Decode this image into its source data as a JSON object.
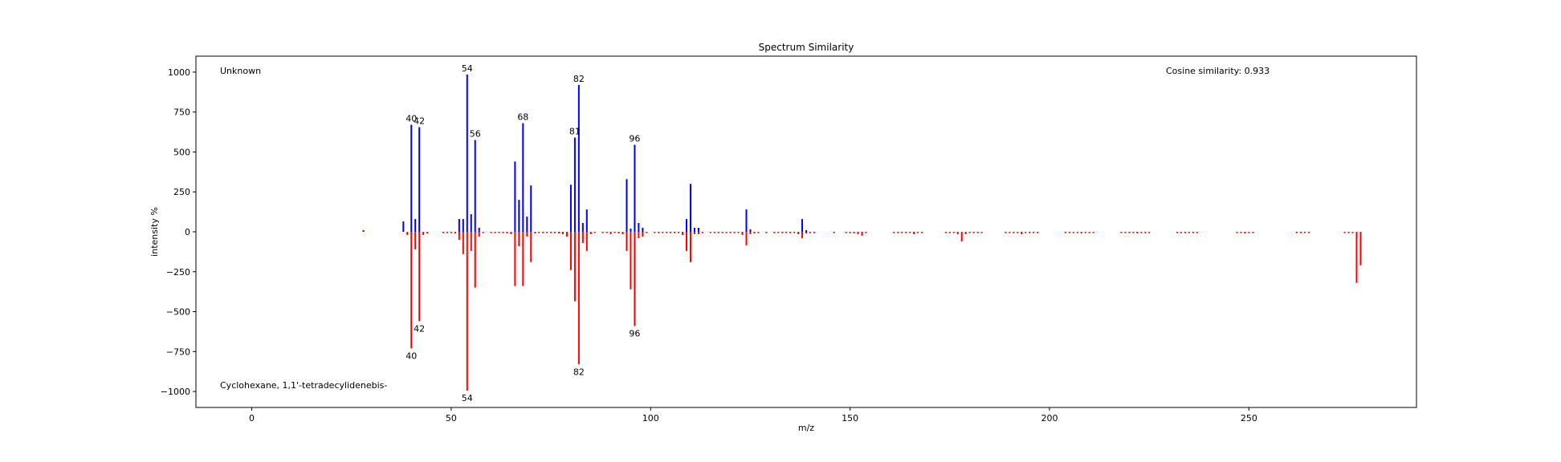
{
  "chart_data": {
    "type": "bar",
    "title": "Spectrum Similarity",
    "xlabel": "m/z",
    "ylabel": "intensity %",
    "xlim": [
      -14,
      292
    ],
    "ylim": [
      -1100,
      1100
    ],
    "x_ticks": [
      0,
      50,
      100,
      150,
      200,
      250
    ],
    "y_ticks": [
      -1000,
      -750,
      -500,
      -250,
      0,
      250,
      500,
      750,
      1000
    ],
    "grid": false,
    "annotations": {
      "top_left": "Unknown",
      "bottom_left": "Cyclohexane, 1,1'-tetradecylidenebis-",
      "top_right": "Cosine similarity: 0.933"
    },
    "series": [
      {
        "name": "Unknown",
        "color": "#0000ff",
        "x": [
          28,
          38,
          40,
          41,
          42,
          52,
          53,
          54,
          55,
          56,
          57,
          66,
          67,
          68,
          69,
          70,
          80,
          81,
          82,
          83,
          84,
          94,
          95,
          96,
          97,
          98,
          109,
          110,
          111,
          112,
          124,
          125,
          138,
          139
        ],
        "values": [
          10,
          65,
          670,
          80,
          655,
          80,
          80,
          985,
          110,
          575,
          25,
          440,
          200,
          680,
          95,
          290,
          295,
          590,
          920,
          55,
          140,
          330,
          20,
          545,
          55,
          25,
          80,
          300,
          25,
          25,
          140,
          15,
          80,
          10
        ]
      },
      {
        "name": "Cyclohexane, 1,1'-tetradecylidenebis-",
        "color": "#ff0000",
        "x": [
          39,
          40,
          41,
          42,
          43,
          44,
          48,
          49,
          50,
          51,
          52,
          53,
          54,
          55,
          56,
          57,
          58,
          60,
          61,
          62,
          63,
          64,
          65,
          66,
          67,
          68,
          69,
          70,
          71,
          72,
          73,
          74,
          75,
          76,
          77,
          78,
          79,
          80,
          81,
          82,
          83,
          84,
          85,
          86,
          88,
          89,
          90,
          91,
          92,
          93,
          94,
          95,
          96,
          97,
          98,
          99,
          101,
          102,
          103,
          104,
          105,
          106,
          107,
          108,
          109,
          110,
          111,
          112,
          113,
          115,
          116,
          117,
          118,
          119,
          120,
          121,
          122,
          123,
          124,
          125,
          126,
          127,
          129,
          131,
          132,
          133,
          134,
          135,
          136,
          137,
          138,
          139,
          140,
          141,
          146,
          149,
          150,
          151,
          152,
          153,
          154,
          161,
          162,
          163,
          164,
          165,
          166,
          167,
          168,
          174,
          175,
          176,
          177,
          178,
          179,
          180,
          181,
          182,
          183,
          189,
          190,
          191,
          192,
          193,
          194,
          195,
          196,
          197,
          204,
          205,
          206,
          207,
          208,
          209,
          210,
          211,
          218,
          219,
          220,
          221,
          222,
          223,
          224,
          225,
          232,
          233,
          234,
          235,
          236,
          237,
          247,
          248,
          249,
          250,
          251,
          262,
          263,
          264,
          265,
          274,
          275,
          276,
          277,
          278
        ],
        "values": [
          -20,
          -730,
          -110,
          -560,
          -20,
          -10,
          -8,
          -8,
          -8,
          -10,
          -50,
          -140,
          -995,
          -120,
          -350,
          -30,
          -8,
          -8,
          -8,
          -8,
          -8,
          -10,
          -15,
          -340,
          -90,
          -340,
          -30,
          -190,
          -10,
          -8,
          -8,
          -8,
          -8,
          -8,
          -10,
          -15,
          -30,
          -240,
          -435,
          -830,
          -70,
          -120,
          -15,
          -8,
          -8,
          -8,
          -15,
          -8,
          -10,
          -15,
          -120,
          -360,
          -590,
          -40,
          -30,
          -8,
          -8,
          -8,
          -8,
          -8,
          -8,
          -8,
          -8,
          -20,
          -120,
          -190,
          -15,
          -15,
          -8,
          -8,
          -8,
          -8,
          -8,
          -8,
          -8,
          -8,
          -8,
          -20,
          -85,
          -15,
          -10,
          -8,
          -8,
          -8,
          -8,
          -8,
          -8,
          -8,
          -8,
          -15,
          -40,
          -10,
          -8,
          -8,
          -8,
          -8,
          -8,
          -10,
          -15,
          -25,
          -8,
          -8,
          -8,
          -8,
          -8,
          -8,
          -15,
          -8,
          -8,
          -8,
          -8,
          -8,
          -15,
          -60,
          -15,
          -8,
          -8,
          -8,
          -8,
          -8,
          -8,
          -8,
          -8,
          -15,
          -8,
          -8,
          -8,
          -8,
          -8,
          -8,
          -8,
          -8,
          -10,
          -8,
          -8,
          -8,
          -8,
          -8,
          -8,
          -8,
          -10,
          -8,
          -8,
          -8,
          -8,
          -8,
          -8,
          -8,
          -8,
          -8,
          -8,
          -8,
          -10,
          -8,
          -8,
          -8,
          -8,
          -8,
          -8,
          -8,
          -8,
          -8,
          -320,
          -210
        ]
      }
    ],
    "peak_labels": [
      {
        "x": 40,
        "y": 670,
        "text": "40"
      },
      {
        "x": 42,
        "y": 655,
        "text": "42"
      },
      {
        "x": 54,
        "y": 985,
        "text": "54"
      },
      {
        "x": 56,
        "y": 575,
        "text": "56"
      },
      {
        "x": 68,
        "y": 680,
        "text": "68"
      },
      {
        "x": 81,
        "y": 590,
        "text": "81"
      },
      {
        "x": 82,
        "y": 920,
        "text": "82"
      },
      {
        "x": 96,
        "y": 545,
        "text": "96"
      },
      {
        "x": 40,
        "y": -730,
        "text": "40"
      },
      {
        "x": 42,
        "y": -560,
        "text": "42"
      },
      {
        "x": 54,
        "y": -995,
        "text": "54"
      },
      {
        "x": 82,
        "y": -830,
        "text": "82"
      },
      {
        "x": 96,
        "y": -590,
        "text": "96"
      }
    ]
  }
}
